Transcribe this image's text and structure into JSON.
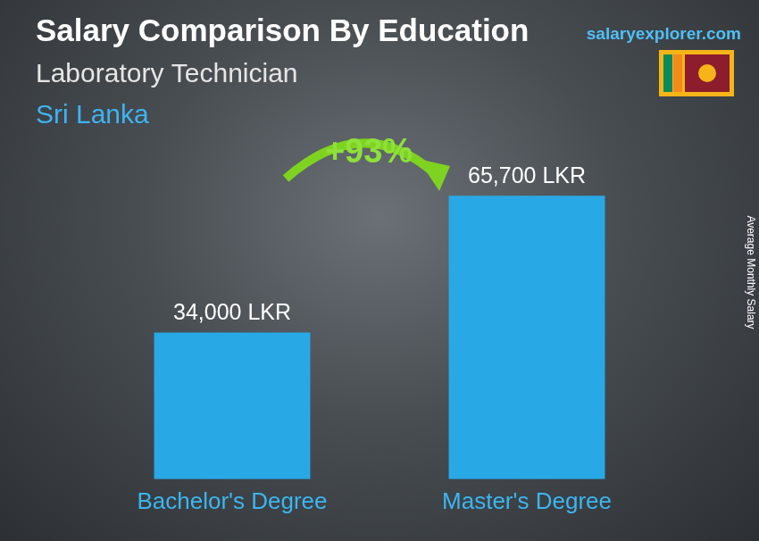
{
  "chart_data": {
    "type": "bar",
    "title": "Salary Comparison By Education",
    "subtitle": "Laboratory Technician",
    "location": "Sri Lanka",
    "source": "salaryexplorer.com",
    "y_label": "Average Monthly Salary",
    "categories": [
      "Bachelor's Degree",
      "Master's Degree"
    ],
    "values": [
      34000,
      65700
    ],
    "value_labels": [
      "34,000 LKR",
      "65,700 LKR"
    ],
    "annotations": [
      "+93%"
    ],
    "color": "#29a8e6",
    "ylim": [
      0,
      80000
    ],
    "grid": false,
    "data_labels": true,
    "tick_labels": "x"
  }
}
